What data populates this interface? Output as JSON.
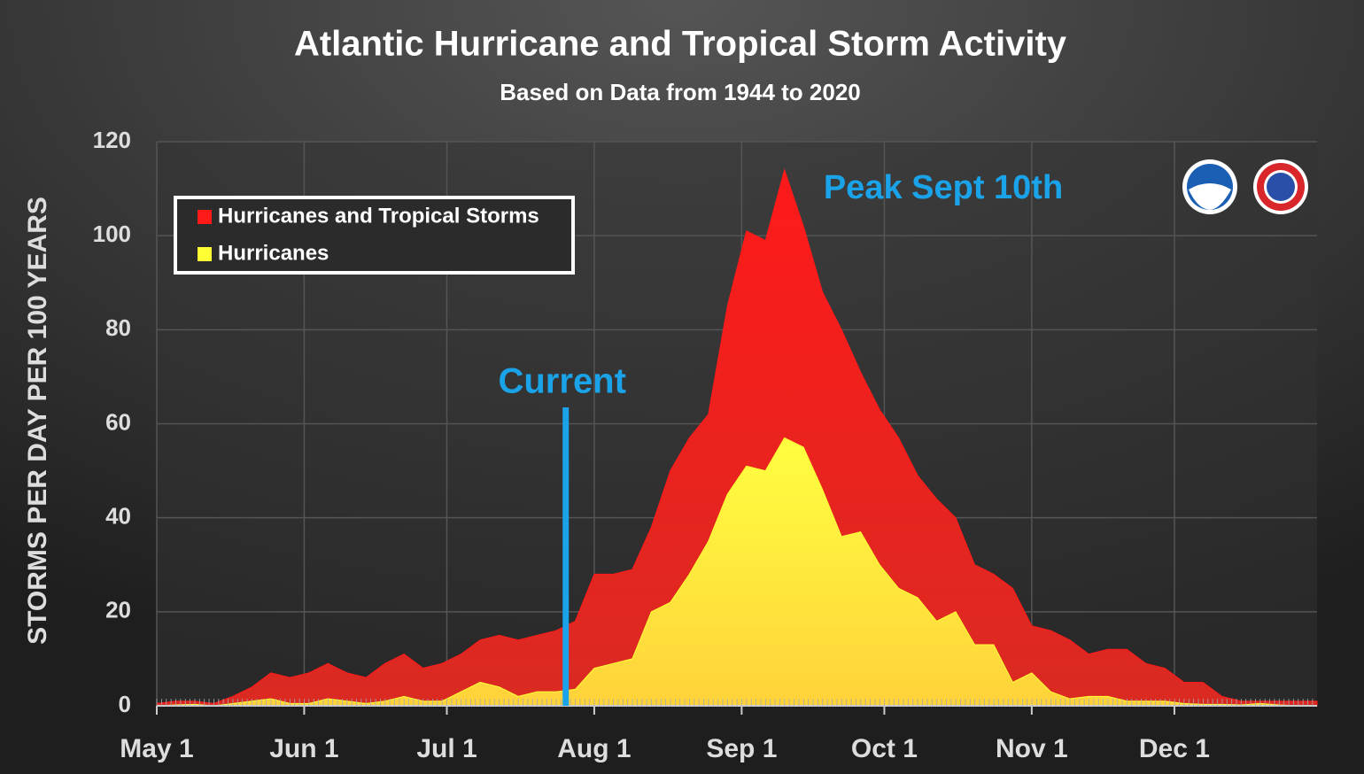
{
  "chart_data": {
    "type": "area",
    "title": "Atlantic Hurricane and Tropical Storm Activity",
    "subtitle": "Based on Data from 1944 to 2020",
    "y_label": "STORMS PER DAY PER 100 YEARS",
    "x": [
      0,
      4,
      8,
      12,
      16,
      20,
      24,
      28,
      32,
      36,
      40,
      44,
      48,
      52,
      56,
      60,
      64,
      68,
      72,
      76,
      80,
      84,
      88,
      92,
      96,
      100,
      104,
      108,
      112,
      116,
      120,
      124,
      128,
      132,
      136,
      140,
      144,
      148,
      152,
      156,
      160,
      164,
      168,
      172,
      176,
      180,
      184,
      188,
      192,
      196,
      200,
      204,
      208,
      212,
      216,
      220,
      224,
      228,
      232,
      236,
      240,
      244
    ],
    "series": [
      {
        "name": "Hurricanes and Tropical Storms",
        "color": "#ff1a1a",
        "values": [
          0.5,
          1,
          1,
          0.5,
          2,
          4,
          7,
          6,
          7,
          9,
          7,
          6,
          9,
          11,
          8,
          9,
          11,
          14,
          15,
          14,
          15,
          16,
          18,
          28,
          28,
          29,
          38,
          50,
          57,
          62,
          85,
          101,
          99,
          114,
          102,
          88,
          80,
          71,
          63,
          57,
          49,
          44,
          40,
          30,
          28,
          25,
          17,
          16,
          14,
          11,
          12,
          12,
          9,
          8,
          5,
          5,
          2,
          1,
          1,
          1,
          1,
          1
        ]
      },
      {
        "name": "Hurricanes",
        "color": "#ffff33",
        "values": [
          0,
          0.2,
          0.3,
          0,
          0.5,
          1,
          1.5,
          0.5,
          0.5,
          1.5,
          1,
          0.5,
          1,
          2,
          1,
          1,
          3,
          5,
          4,
          2,
          3,
          3,
          3.5,
          8,
          9,
          10,
          20,
          22,
          28,
          35,
          45,
          51,
          50,
          57,
          55,
          46,
          36,
          37,
          30,
          25,
          23,
          18,
          20,
          13,
          13,
          5,
          7,
          3,
          1.5,
          2,
          2,
          1,
          1,
          1,
          0.5,
          0.3,
          0.3,
          0.2,
          0.5,
          0.2,
          0,
          0
        ]
      }
    ],
    "xlim": [
      0,
      244
    ],
    "xticks": [
      {
        "value": 0,
        "label": "May 1"
      },
      {
        "value": 31,
        "label": "Jun 1"
      },
      {
        "value": 61,
        "label": "Jul 1"
      },
      {
        "value": 92,
        "label": "Aug 1"
      },
      {
        "value": 123,
        "label": "Sep 1"
      },
      {
        "value": 153,
        "label": "Oct 1"
      },
      {
        "value": 184,
        "label": "Nov 1"
      },
      {
        "value": 214,
        "label": "Dec 1"
      }
    ],
    "ylim": [
      0,
      120
    ],
    "yticks": [
      0,
      20,
      40,
      60,
      80,
      100,
      120
    ],
    "grid": true,
    "legend": "upper left",
    "current_marker": {
      "label": "Current",
      "x": 86
    },
    "annotations": [
      "Peak Sept 10th"
    ]
  }
}
